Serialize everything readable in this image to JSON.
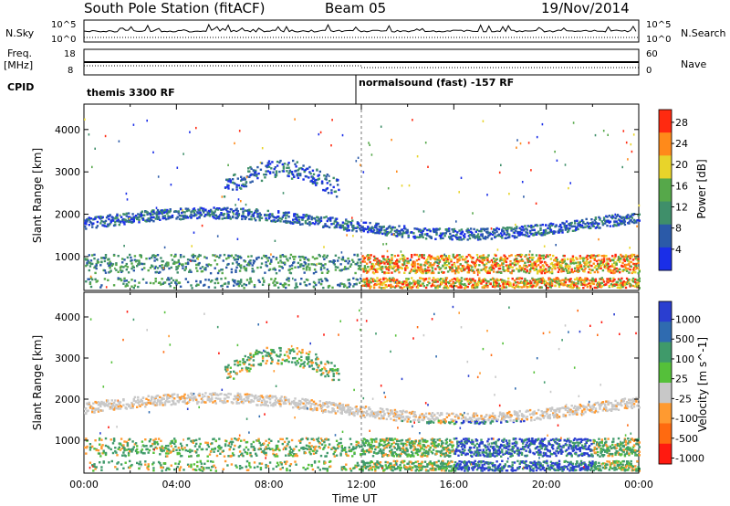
{
  "header": {
    "station": "South Pole Station (fitACF)",
    "beam": "Beam 05",
    "date": "19/Nov/2014"
  },
  "side_labels": {
    "nsky": "N.Sky",
    "freq": "Freq.",
    "freq_unit": "[MHz]",
    "cpid": "CPID",
    "nsearch": "N.Search",
    "nave": "Nave"
  },
  "noise_panel": {
    "left_ticks": [
      "10^5",
      "10^0"
    ],
    "right_ticks": [
      "10^5",
      "10^0"
    ]
  },
  "freq_panel": {
    "left_ticks": [
      "18",
      "8"
    ],
    "right_ticks": [
      "60",
      "0"
    ]
  },
  "cpid_panel": {
    "segments": [
      {
        "label": "themis 3300 RF",
        "start_hour": 0
      },
      {
        "label": "normalsound (fast) -157 RF",
        "start_hour": 12
      }
    ]
  },
  "chart_data": [
    {
      "type": "heatmap",
      "name": "power",
      "ylabel": "Slant Range [km]",
      "xlabel": "Time UT",
      "x_range_hours": [
        0,
        24
      ],
      "ylim": [
        200,
        4600
      ],
      "y_ticks": [
        1000,
        2000,
        3000,
        4000
      ],
      "x_tick_labels": [
        "00:00",
        "04:00",
        "08:00",
        "12:00",
        "16:00",
        "20:00",
        "00:00"
      ],
      "colorbar": {
        "label": "Power [dB]",
        "ticks": [
          "4",
          "8",
          "12",
          "16",
          "20",
          "24",
          "28"
        ],
        "colors": [
          "#1a2ee8",
          "#2b5aa8",
          "#3f8f6a",
          "#56a84a",
          "#e8d42a",
          "#ff8a1a",
          "#ff2a10"
        ]
      }
    },
    {
      "type": "heatmap",
      "name": "velocity",
      "ylabel": "Slant Range [km]",
      "xlabel": "Time UT",
      "x_range_hours": [
        0,
        24
      ],
      "ylim": [
        200,
        4600
      ],
      "y_ticks": [
        1000,
        2000,
        3000,
        4000
      ],
      "x_tick_labels": [
        "00:00",
        "04:00",
        "08:00",
        "12:00",
        "16:00",
        "20:00",
        "00:00"
      ],
      "colorbar": {
        "label": "Velocity [m s^-1]",
        "ticks": [
          "1000",
          "500",
          "100",
          "25",
          "-25",
          "-100",
          "-500",
          "-1000"
        ],
        "colors": [
          "#2a3ed0",
          "#2f6bb0",
          "#3f9a6a",
          "#55c03a",
          "#c8c8c8",
          "#ff9a30",
          "#ff6a10",
          "#ff1a10"
        ]
      }
    }
  ],
  "time_axis_label": "Time UT"
}
